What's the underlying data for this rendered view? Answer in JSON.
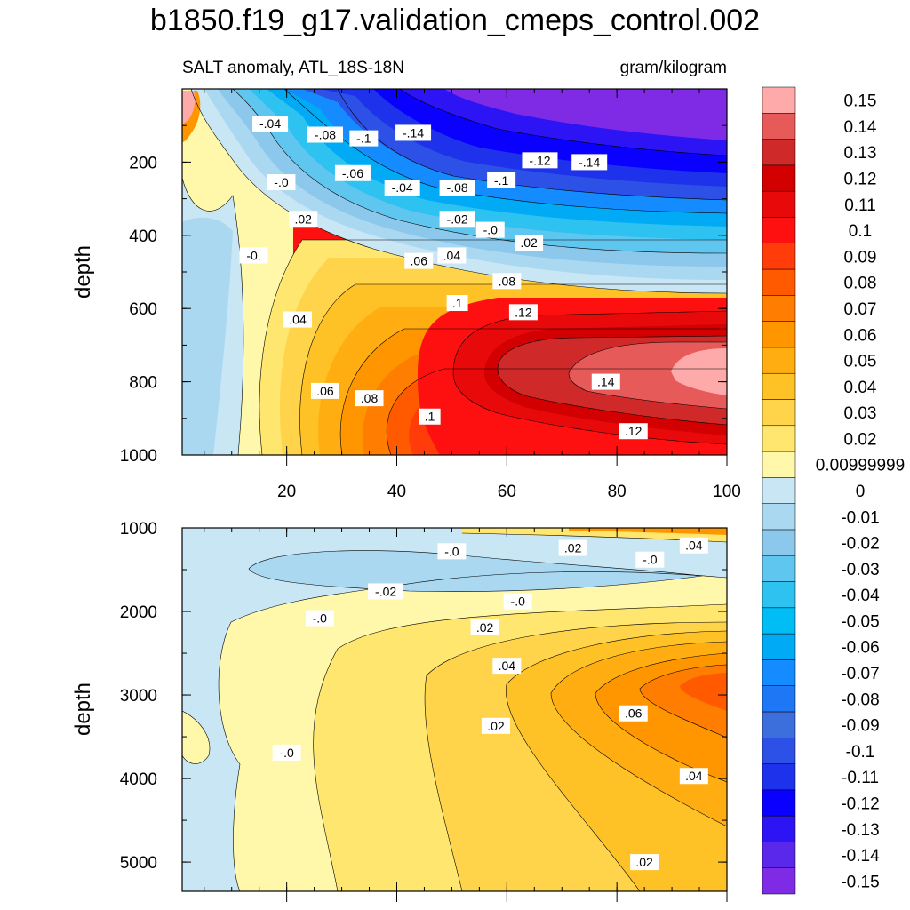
{
  "chart_data": [
    {
      "type": "contour",
      "panel": "upper",
      "title": "b1850.f19_g17.validation_cmeps_control.002",
      "left_subtitle": "SALT anomaly, ATL_18S-18N",
      "right_subtitle": "gram/kilogram",
      "xlabel": "",
      "ylabel": "depth",
      "xlim": [
        1,
        100
      ],
      "ylim": [
        1000,
        0
      ],
      "xticks": [
        "20",
        "40",
        "60",
        "80",
        "100"
      ],
      "yticks": [
        "200",
        "400",
        "600",
        "800",
        "1000"
      ],
      "contour_labels": [
        {
          "text": ".04",
          "x": 22,
          "y": 630
        },
        {
          "text": ".06",
          "x": 27,
          "y": 825
        },
        {
          "text": ".08",
          "x": 35,
          "y": 845
        },
        {
          "text": ".1",
          "x": 46,
          "y": 895
        },
        {
          "text": ".12",
          "x": 83,
          "y": 935
        },
        {
          "text": ".14",
          "x": 78,
          "y": 800
        },
        {
          "text": ".12",
          "x": 63,
          "y": 610
        },
        {
          "text": ".1",
          "x": 51,
          "y": 585
        },
        {
          "text": ".08",
          "x": 60,
          "y": 525
        },
        {
          "text": ".06",
          "x": 44,
          "y": 470
        },
        {
          "text": ".04",
          "x": 50,
          "y": 455
        },
        {
          "text": ".02",
          "x": 64,
          "y": 420
        },
        {
          "text": "-.0",
          "x": 57,
          "y": 385
        },
        {
          "text": "-.02",
          "x": 51,
          "y": 355
        },
        {
          "text": ".02",
          "x": 23,
          "y": 355
        },
        {
          "text": "-0.",
          "x": 14,
          "y": 455
        },
        {
          "text": "-.0",
          "x": 19,
          "y": 255
        },
        {
          "text": "-.06",
          "x": 32,
          "y": 230
        },
        {
          "text": "-.04",
          "x": 41,
          "y": 270
        },
        {
          "text": "-.08",
          "x": 51,
          "y": 270
        },
        {
          "text": "-.1",
          "x": 59,
          "y": 250
        },
        {
          "text": "-.12",
          "x": 66,
          "y": 195
        },
        {
          "text": "-.14",
          "x": 75,
          "y": 200
        },
        {
          "text": "-.04",
          "x": 17,
          "y": 95
        },
        {
          "text": "-.08",
          "x": 27,
          "y": 125
        },
        {
          "text": "-.1",
          "x": 34,
          "y": 135
        },
        {
          "text": "-.14",
          "x": 43,
          "y": 120
        }
      ]
    },
    {
      "type": "contour",
      "panel": "lower",
      "xlabel": "",
      "ylabel": "depth",
      "xlim": [
        1,
        100
      ],
      "ylim": [
        5350,
        1000
      ],
      "yticks": [
        "1000",
        "2000",
        "3000",
        "4000",
        "5000"
      ],
      "contour_labels": [
        {
          "text": "-.0",
          "x": 50,
          "y": 1280
        },
        {
          "text": ".02",
          "x": 72,
          "y": 1240
        },
        {
          "text": ".04",
          "x": 94,
          "y": 1210
        },
        {
          "text": "-.0",
          "x": 86,
          "y": 1380
        },
        {
          "text": "-.02",
          "x": 38,
          "y": 1760
        },
        {
          "text": "-.0",
          "x": 26,
          "y": 2080
        },
        {
          "text": "-.0",
          "x": 62,
          "y": 1880
        },
        {
          "text": ".02",
          "x": 56,
          "y": 2190
        },
        {
          "text": ".04",
          "x": 60,
          "y": 2650
        },
        {
          "text": ".06",
          "x": 83,
          "y": 3220
        },
        {
          "text": ".02",
          "x": 58,
          "y": 3370
        },
        {
          "text": "-.0",
          "x": 20,
          "y": 3690
        },
        {
          "text": ".04",
          "x": 94,
          "y": 3970
        },
        {
          "text": ".02",
          "x": 85,
          "y": 5000
        }
      ]
    }
  ],
  "colorbar": {
    "colors": [
      "#7f2be6",
      "#5a28eb",
      "#2d14f5",
      "#0a00ff",
      "#1e32eb",
      "#2d50e6",
      "#3c6edc",
      "#1e78f5",
      "#148cff",
      "#00aaf5",
      "#00bef5",
      "#2ec2f0",
      "#5fc6f0",
      "#8cc8ec",
      "#aad8f0",
      "#c8e6f4",
      "#fff7aa",
      "#ffe66e",
      "#ffd44a",
      "#ffc226",
      "#ffad10",
      "#ff9600",
      "#ff7d00",
      "#ff5a00",
      "#ff3c0a",
      "#ff1010",
      "#e80a0a",
      "#d20000",
      "#cf2929",
      "#e65a5a",
      "#ffaaaa"
    ],
    "labels": [
      "-0.15",
      "-0.14",
      "-0.13",
      "-0.12",
      "-0.11",
      "-0.1",
      "-0.09",
      "-0.08",
      "-0.07",
      "-0.06",
      "-0.05",
      "-0.04",
      "-0.03",
      "-0.02",
      "-0.01",
      "0",
      "0.00999999",
      "0.02",
      "0.03",
      "0.04",
      "0.05",
      "0.06",
      "0.07",
      "0.08",
      "0.09",
      "0.1",
      "0.11",
      "0.12",
      "0.13",
      "0.14",
      "0.15"
    ]
  }
}
